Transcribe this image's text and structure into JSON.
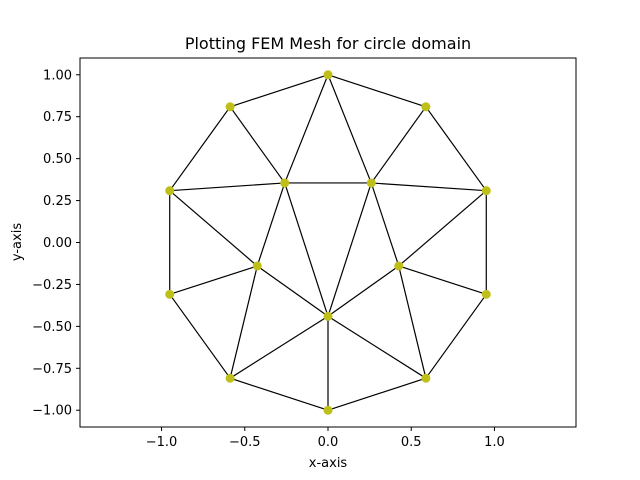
{
  "chart_data": {
    "type": "scatter",
    "title": "Plotting FEM Mesh for circle domain",
    "xlabel": "x-axis",
    "ylabel": "y-axis",
    "xlim": [
      -1.49,
      1.49
    ],
    "ylim": [
      -1.1,
      1.1
    ],
    "grid": false,
    "xticks": [
      -1.0,
      -0.5,
      0.0,
      0.5,
      1.0
    ],
    "xtick_labels": [
      "−1.0",
      "−0.5",
      "0.0",
      "0.5",
      "1.0"
    ],
    "yticks": [
      1.0,
      0.75,
      0.5,
      0.25,
      0.0,
      -0.25,
      -0.5,
      -0.75,
      -1.0
    ],
    "ytick_labels": [
      "1.00",
      "0.75",
      "0.50",
      "0.25",
      "0.00",
      "−0.25",
      "−0.50",
      "−0.75",
      "−1.00"
    ],
    "nodes": [
      {
        "x": 0.0,
        "y": 1.0
      },
      {
        "x": 0.588,
        "y": 0.809
      },
      {
        "x": 0.951,
        "y": 0.309
      },
      {
        "x": 0.951,
        "y": -0.309
      },
      {
        "x": 0.588,
        "y": -0.809
      },
      {
        "x": 0.0,
        "y": -1.0
      },
      {
        "x": -0.588,
        "y": -0.809
      },
      {
        "x": -0.951,
        "y": -0.309
      },
      {
        "x": -0.951,
        "y": 0.309
      },
      {
        "x": -0.588,
        "y": 0.809
      },
      {
        "x": -0.26,
        "y": 0.355
      },
      {
        "x": 0.26,
        "y": 0.355
      },
      {
        "x": 0.425,
        "y": -0.14
      },
      {
        "x": 0.0,
        "y": -0.44
      },
      {
        "x": -0.425,
        "y": -0.14
      }
    ],
    "edges": [
      [
        0,
        1
      ],
      [
        1,
        2
      ],
      [
        2,
        3
      ],
      [
        3,
        4
      ],
      [
        4,
        5
      ],
      [
        5,
        6
      ],
      [
        6,
        7
      ],
      [
        7,
        8
      ],
      [
        8,
        9
      ],
      [
        9,
        0
      ],
      [
        0,
        10
      ],
      [
        0,
        11
      ],
      [
        9,
        10
      ],
      [
        1,
        11
      ],
      [
        10,
        11
      ],
      [
        8,
        10
      ],
      [
        2,
        11
      ],
      [
        8,
        14
      ],
      [
        7,
        14
      ],
      [
        2,
        12
      ],
      [
        3,
        12
      ],
      [
        10,
        14
      ],
      [
        10,
        13
      ],
      [
        11,
        13
      ],
      [
        11,
        12
      ],
      [
        14,
        13
      ],
      [
        12,
        13
      ],
      [
        6,
        14
      ],
      [
        6,
        13
      ],
      [
        4,
        12
      ],
      [
        4,
        13
      ],
      [
        5,
        13
      ]
    ],
    "node_color": "#bfbf1a",
    "edge_color": "#000000"
  }
}
